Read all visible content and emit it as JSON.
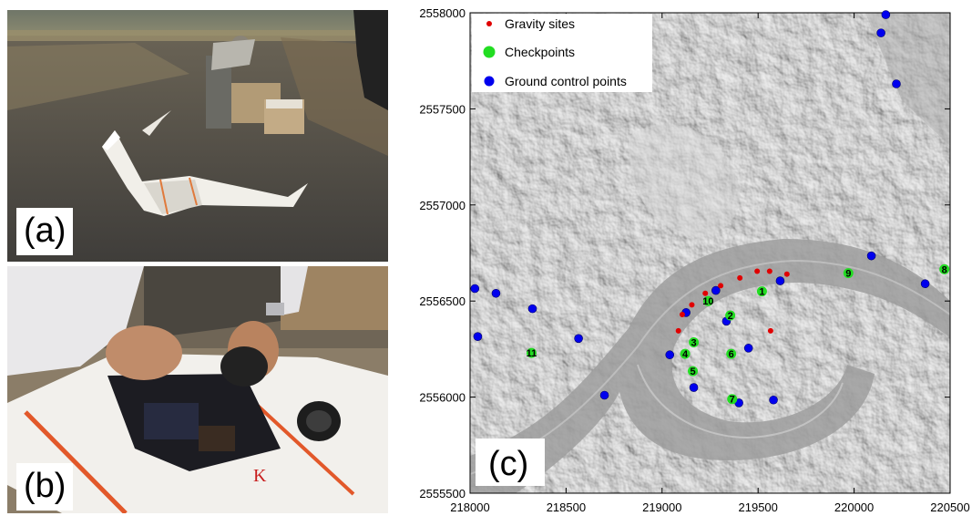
{
  "panels": {
    "a_label": "(a)",
    "b_label": "(b)",
    "c_label": "(c)"
  },
  "chart_data": {
    "type": "scatter",
    "xlim": [
      218000,
      220500
    ],
    "ylim": [
      2555500,
      2558000
    ],
    "x_ticks": [
      "218000",
      "218500",
      "219000",
      "219500",
      "220000",
      "220500"
    ],
    "y_ticks": [
      "2555500",
      "2556000",
      "2556500",
      "2557000",
      "2557500",
      "2558000"
    ],
    "legend": {
      "placement": "top-left",
      "entries": [
        "Gravity sites",
        "Checkpoints",
        "Ground control points"
      ]
    },
    "colors": {
      "gravity": "#e00000",
      "checkpoint": "#22dd22",
      "gcp": "#0000ee"
    },
    "gravity_sites": [
      [
        219085,
        2556345
      ],
      [
        219105,
        2556430
      ],
      [
        219155,
        2556480
      ],
      [
        219225,
        2556540
      ],
      [
        219305,
        2556580
      ],
      [
        219405,
        2556620
      ],
      [
        219495,
        2556655
      ],
      [
        219560,
        2556655
      ],
      [
        219650,
        2556640
      ],
      [
        219565,
        2556345
      ]
    ],
    "checkpoints": [
      {
        "label": "1",
        "x": 219520,
        "y": 2556550
      },
      {
        "label": "2",
        "x": 219355,
        "y": 2556425
      },
      {
        "label": "3",
        "x": 219165,
        "y": 2556285
      },
      {
        "label": "4",
        "x": 219120,
        "y": 2556225
      },
      {
        "label": "5",
        "x": 219160,
        "y": 2556135
      },
      {
        "label": "6",
        "x": 219360,
        "y": 2556225
      },
      {
        "label": "7",
        "x": 219365,
        "y": 2555990
      },
      {
        "label": "8",
        "x": 220470,
        "y": 2556665
      },
      {
        "label": "9",
        "x": 219970,
        "y": 2556645
      },
      {
        "label": "10",
        "x": 219240,
        "y": 2556500
      },
      {
        "label": "11",
        "x": 218320,
        "y": 2556230
      }
    ],
    "ground_control_points": [
      [
        220165,
        2557990
      ],
      [
        220140,
        2557895
      ],
      [
        220220,
        2557630
      ],
      [
        220090,
        2556735
      ],
      [
        220370,
        2556590
      ],
      [
        219615,
        2556605
      ],
      [
        219280,
        2556555
      ],
      [
        219125,
        2556440
      ],
      [
        219335,
        2556395
      ],
      [
        219040,
        2556220
      ],
      [
        219450,
        2556255
      ],
      [
        219165,
        2556050
      ],
      [
        219580,
        2555985
      ],
      [
        219400,
        2555970
      ],
      [
        218025,
        2556565
      ],
      [
        218135,
        2556540
      ],
      [
        218325,
        2556460
      ],
      [
        218040,
        2556315
      ],
      [
        218565,
        2556305
      ],
      [
        218700,
        2556010
      ]
    ]
  }
}
